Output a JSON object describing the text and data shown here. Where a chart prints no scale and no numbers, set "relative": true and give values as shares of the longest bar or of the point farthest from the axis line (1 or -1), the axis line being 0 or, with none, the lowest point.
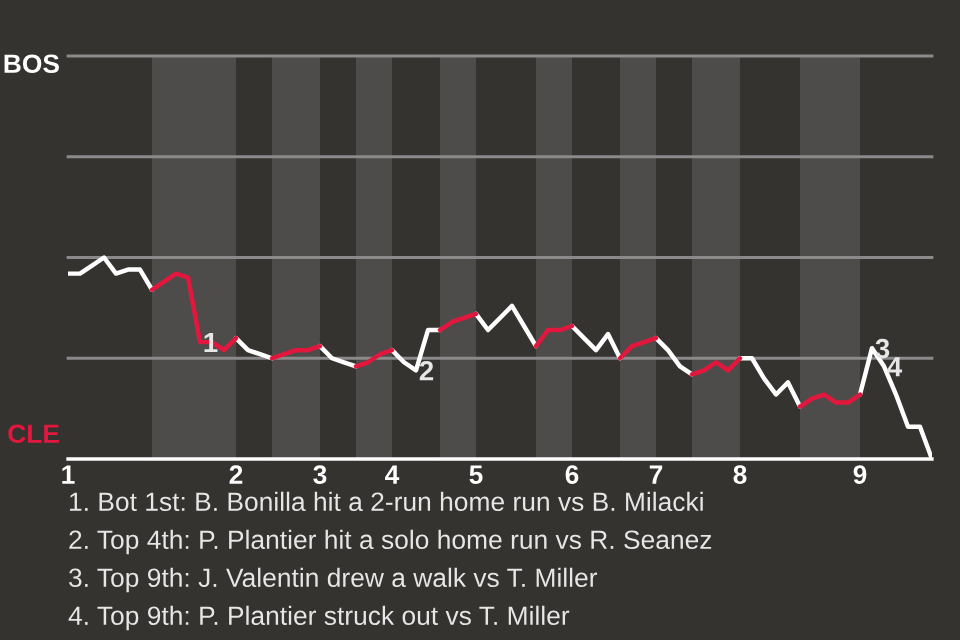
{
  "chart_data": {
    "type": "line",
    "relative": true,
    "categories": [
      "1",
      null,
      null,
      null,
      null,
      null,
      null,
      null,
      null,
      null,
      null,
      null,
      null,
      null,
      "2",
      null,
      null,
      null,
      null,
      null,
      null,
      "3",
      null,
      null,
      null,
      null,
      null,
      "4",
      null,
      null,
      null,
      null,
      null,
      null,
      "5",
      null,
      null,
      null,
      null,
      null,
      null,
      null,
      "6",
      null,
      null,
      null,
      null,
      null,
      null,
      "7",
      null,
      null,
      null,
      null,
      null,
      null,
      "8",
      null,
      null,
      null,
      null,
      null,
      null,
      null,
      null,
      null,
      "9",
      null,
      null,
      null,
      null,
      null,
      null
    ],
    "marker": "none",
    "line_style": "solid",
    "ref_lines": [
      {
        "axis": "y",
        "value": 0.5,
        "color": "#8a8a8a"
      },
      {
        "axis": "y",
        "value": 1,
        "color": "#8a8a8a"
      },
      {
        "axis": "y",
        "value": 1.5,
        "color": "#8a8a8a"
      },
      {
        "axis": "y",
        "value": 2,
        "color": "#8a8a8a"
      }
    ],
    "series": [
      {
        "color": "#ffffff",
        "values": [
          0.92,
          0.92,
          0.96,
          1,
          0.92,
          0.94,
          0.94,
          0.84,
          null,
          null,
          null,
          null,
          null,
          null,
          0.6,
          0.54,
          0.52,
          0.5,
          null,
          null,
          null,
          0.56,
          0.5,
          0.48,
          0.46,
          null,
          null,
          0.54,
          0.48,
          0.44,
          0.64,
          0.64,
          null,
          null,
          0.72,
          0.64,
          0.7,
          0.76,
          0.66,
          0.56,
          null,
          null,
          0.66,
          0.6,
          0.54,
          0.62,
          0.5,
          null,
          null,
          0.6,
          0.54,
          0.46,
          0.42,
          null,
          null,
          null,
          0.5,
          0.5,
          0.4,
          0.32,
          0.38,
          0.26,
          null,
          null,
          null,
          null,
          0.32,
          0.55,
          0.46,
          0.32,
          0.16,
          0.16,
          0
        ]
      },
      {
        "color": "#e3173e",
        "values": [
          null,
          null,
          null,
          null,
          null,
          null,
          null,
          0.84,
          0.88,
          0.92,
          0.9,
          0.58,
          0.58,
          0.54,
          0.6,
          null,
          null,
          0.5,
          0.52,
          0.54,
          0.54,
          0.56,
          null,
          null,
          0.46,
          0.48,
          0.52,
          0.54,
          null,
          null,
          null,
          0.64,
          0.68,
          0.7,
          0.72,
          null,
          null,
          null,
          null,
          0.56,
          0.64,
          0.64,
          0.66,
          null,
          null,
          null,
          0.5,
          0.56,
          0.58,
          0.6,
          null,
          null,
          0.42,
          0.44,
          0.48,
          0.44,
          0.5,
          null,
          null,
          null,
          null,
          0.26,
          0.3,
          0.32,
          0.28,
          0.28,
          0.32,
          null,
          null,
          null,
          null,
          null,
          null
        ]
      }
    ],
    "annotations": [
      {
        "text": "1",
        "y": 0.58
      },
      {
        "text": "2",
        "y": 0.44
      },
      {
        "text": "3",
        "y": 0.55
      },
      {
        "text": "4",
        "y": 0.46
      },
      "BOS",
      "CLE",
      "1. Bot 1st: B. Bonilla hit a 2-run home run vs B. Milacki",
      "2. Top 4th: P. Plantier hit a solo home run vs R. Seanez",
      "3. Top 9th: J. Valentin drew a walk vs T. Miller",
      "4. Top 9th: P. Plantier struck out vs T. Miller"
    ]
  }
}
